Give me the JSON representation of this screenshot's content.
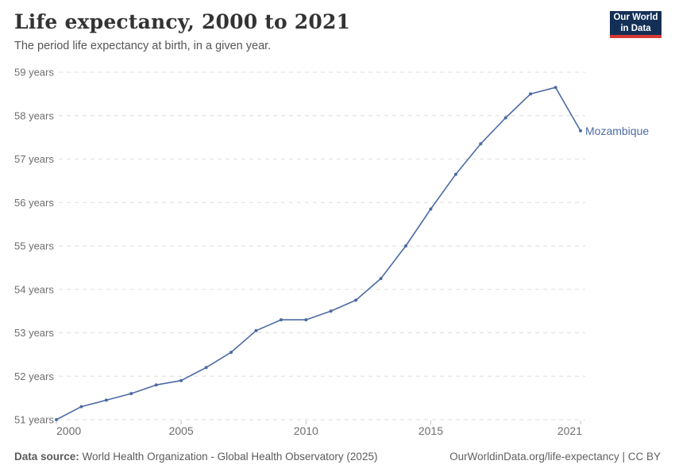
{
  "header": {
    "title": "Life expectancy, 2000 to 2021",
    "subtitle": "The period life expectancy at birth, in a given year.",
    "logo": {
      "line1": "Our World",
      "line2": "in Data"
    }
  },
  "chart_data": {
    "type": "line",
    "title": "Life expectancy, 2000 to 2021",
    "subtitle": "The period life expectancy at birth, in a given year.",
    "x": [
      2000,
      2001,
      2002,
      2003,
      2004,
      2005,
      2006,
      2007,
      2008,
      2009,
      2010,
      2011,
      2012,
      2013,
      2014,
      2015,
      2016,
      2017,
      2018,
      2019,
      2020,
      2021
    ],
    "series": [
      {
        "name": "Mozambique",
        "values": [
          51.0,
          51.3,
          51.45,
          51.6,
          51.8,
          51.9,
          52.2,
          52.55,
          53.05,
          53.3,
          53.3,
          53.5,
          53.75,
          54.25,
          55.0,
          55.85,
          56.65,
          57.35,
          57.95,
          58.5,
          58.65,
          57.65
        ]
      }
    ],
    "xlabel": "",
    "ylabel": "",
    "xlim": [
      2000,
      2021
    ],
    "ylim": [
      51,
      59
    ],
    "yticks": [
      51,
      52,
      53,
      54,
      55,
      56,
      57,
      58,
      59
    ],
    "ytick_suffix": " years",
    "xticks": [
      2000,
      2005,
      2010,
      2015,
      2021
    ],
    "grid": "horizontal-dashed",
    "legend_position": "end-of-line-label"
  },
  "footer": {
    "source_label": "Data source:",
    "source_text": " World Health Organization - Global Health Observatory (2025)",
    "attribution": "OurWorldinData.org/life-expectancy | CC BY"
  },
  "colors": {
    "line": "#4c6ba5",
    "entity_label": "#4c6ba5",
    "grid": "#dedede",
    "tick": "#c4c4c4",
    "axis_text": "#6e6e6e",
    "logo_bg": "#132f56",
    "logo_accent": "#d43833"
  }
}
